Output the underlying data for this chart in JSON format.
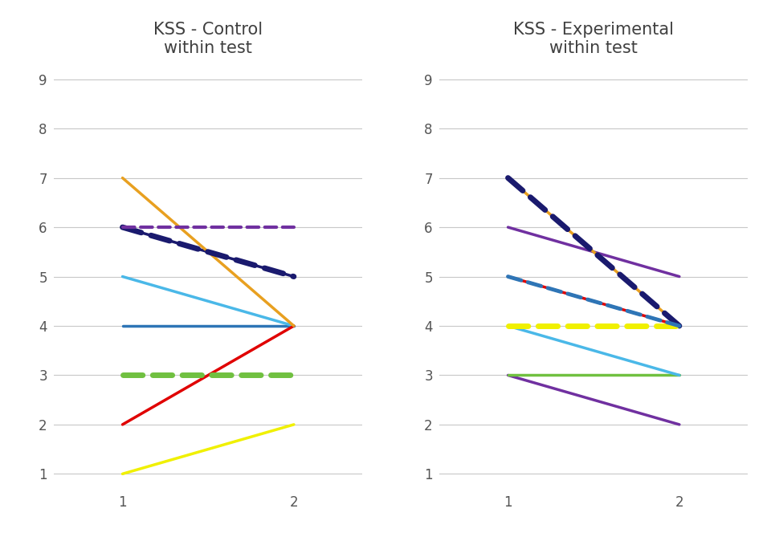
{
  "title_left": "KSS - Control\nwithin test",
  "title_right": "KSS - Experimental\nwithin test",
  "ylim": [
    0.7,
    9.3
  ],
  "yticks": [
    1,
    2,
    3,
    4,
    5,
    6,
    7,
    8,
    9
  ],
  "xlim": [
    0.6,
    2.4
  ],
  "xticks": [
    1,
    2
  ],
  "control_lines": [
    {
      "x": [
        1,
        2
      ],
      "y": [
        6,
        5
      ],
      "color": "#1a1a6e",
      "linestyle": "dash",
      "linewidth": 5.0
    },
    {
      "x": [
        1,
        2
      ],
      "y": [
        6,
        6
      ],
      "color": "#7030a0",
      "linestyle": "dash",
      "linewidth": 3.0
    },
    {
      "x": [
        1,
        2
      ],
      "y": [
        3,
        3
      ],
      "color": "#70c040",
      "linestyle": "dash",
      "linewidth": 5.0
    },
    {
      "x": [
        1,
        2
      ],
      "y": [
        4,
        4
      ],
      "color": "#2e75b6",
      "linestyle": "solid",
      "linewidth": 2.5
    },
    {
      "x": [
        1,
        2
      ],
      "y": [
        5,
        4
      ],
      "color": "#4ab8e8",
      "linestyle": "solid",
      "linewidth": 2.5
    },
    {
      "x": [
        1,
        2
      ],
      "y": [
        6,
        5
      ],
      "color": "#1a1a6e",
      "linestyle": "solid",
      "linewidth": 2.5
    },
    {
      "x": [
        1,
        2
      ],
      "y": [
        2,
        4
      ],
      "color": "#e00000",
      "linestyle": "solid",
      "linewidth": 2.5
    },
    {
      "x": [
        1,
        2
      ],
      "y": [
        7,
        4
      ],
      "color": "#e8a020",
      "linestyle": "solid",
      "linewidth": 2.5
    },
    {
      "x": [
        1,
        2
      ],
      "y": [
        1,
        2
      ],
      "color": "#f0f000",
      "linestyle": "solid",
      "linewidth": 2.5
    }
  ],
  "experimental_lines": [
    {
      "x": [
        1,
        2
      ],
      "y": [
        7,
        4
      ],
      "color": "#1a1a6e",
      "linestyle": "dash",
      "linewidth": 5.0
    },
    {
      "x": [
        1,
        2
      ],
      "y": [
        4,
        4
      ],
      "color": "#f0f000",
      "linestyle": "dash",
      "linewidth": 5.0
    },
    {
      "x": [
        1,
        2
      ],
      "y": [
        5,
        4
      ],
      "color": "#2e75b6",
      "linestyle": "dash",
      "linewidth": 3.5
    },
    {
      "x": [
        1,
        2
      ],
      "y": [
        6,
        5
      ],
      "color": "#7030a0",
      "linestyle": "solid",
      "linewidth": 2.5
    },
    {
      "x": [
        1,
        2
      ],
      "y": [
        3,
        2
      ],
      "color": "#7030a0",
      "linestyle": "solid",
      "linewidth": 2.5
    },
    {
      "x": [
        1,
        2
      ],
      "y": [
        3,
        3
      ],
      "color": "#70c040",
      "linestyle": "solid",
      "linewidth": 2.5
    },
    {
      "x": [
        1,
        2
      ],
      "y": [
        4,
        3
      ],
      "color": "#4ab8e8",
      "linestyle": "solid",
      "linewidth": 2.5
    },
    {
      "x": [
        1,
        2
      ],
      "y": [
        5,
        4
      ],
      "color": "#e00000",
      "linestyle": "solid",
      "linewidth": 2.5
    },
    {
      "x": [
        1,
        2
      ],
      "y": [
        7,
        4
      ],
      "color": "#e8a020",
      "linestyle": "solid",
      "linewidth": 2.5
    }
  ],
  "background_color": "#ffffff",
  "grid_color": "#c8c8c8",
  "title_fontsize": 15,
  "tick_fontsize": 12
}
